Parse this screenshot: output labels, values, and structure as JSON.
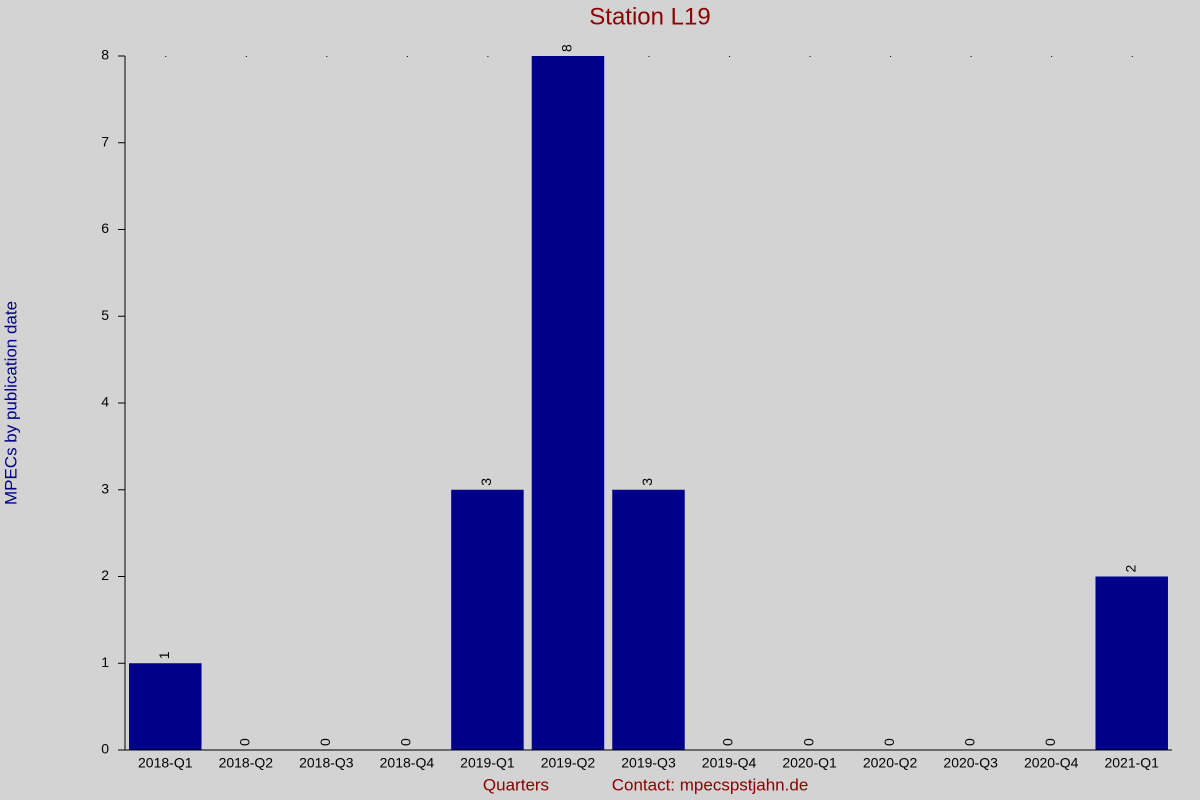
{
  "chart_data": {
    "type": "bar",
    "title": "Station L19",
    "x_label": "Quarters",
    "contact": "Contact: mpecspstjahn.de",
    "y_label": "MPECs by publication date",
    "categories": [
      "2018-Q1",
      "2018-Q2",
      "2018-Q3",
      "2018-Q4",
      "2019-Q1",
      "2019-Q2",
      "2019-Q3",
      "2019-Q4",
      "2020-Q1",
      "2020-Q2",
      "2020-Q3",
      "2020-Q4",
      "2021-Q1"
    ],
    "values": [
      1,
      0,
      0,
      0,
      3,
      8,
      3,
      0,
      0,
      0,
      0,
      0,
      2
    ],
    "color": "#00008b",
    "ylim": [
      0,
      8
    ],
    "yticks": [
      0,
      1,
      2,
      3,
      4,
      5,
      6,
      7,
      8
    ],
    "grid": false
  }
}
